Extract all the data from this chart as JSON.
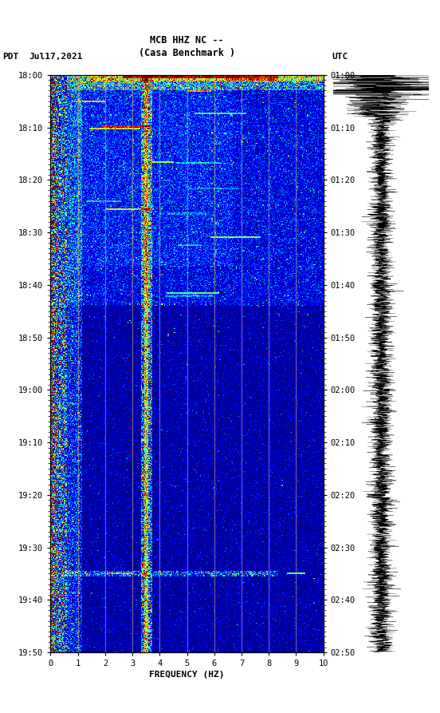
{
  "title_line1": "MCB HHZ NC --",
  "title_line2": "(Casa Benchmark )",
  "label_left": "PDT",
  "label_date": "Jul17,2021",
  "label_right": "UTC",
  "left_times": [
    "18:00",
    "18:10",
    "18:20",
    "18:30",
    "18:40",
    "18:50",
    "19:00",
    "19:10",
    "19:20",
    "19:30",
    "19:40",
    "19:50"
  ],
  "right_times": [
    "01:00",
    "01:10",
    "01:20",
    "01:30",
    "01:40",
    "01:50",
    "02:00",
    "02:10",
    "02:20",
    "02:30",
    "02:40",
    "02:50"
  ],
  "freq_label": "FREQUENCY (HZ)",
  "freq_ticks": [
    0,
    1,
    2,
    3,
    4,
    5,
    6,
    7,
    8,
    9,
    10
  ],
  "fig_width": 5.52,
  "fig_height": 8.93,
  "spectrogram_cmap": "jet",
  "background_color": "#ffffff",
  "n_time": 660,
  "n_freq": 300,
  "seed": 42,
  "vgrid_color": "#c8a060",
  "vgrid_freqs": [
    1,
    2,
    3,
    4,
    5,
    6,
    7,
    8,
    9
  ]
}
